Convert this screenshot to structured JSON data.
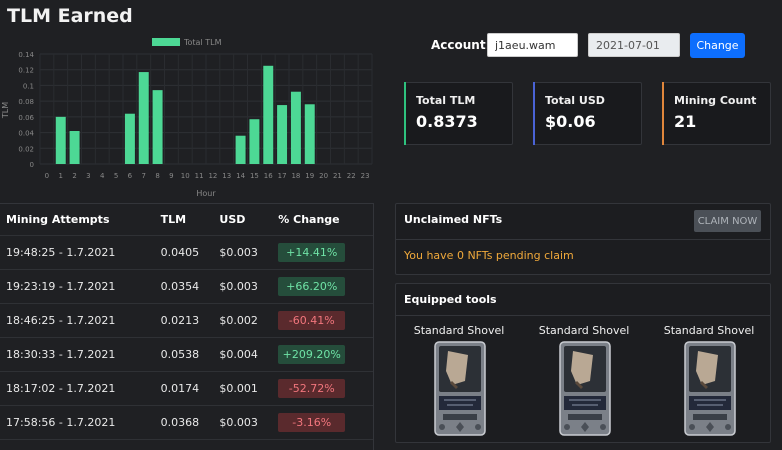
{
  "page": {
    "title": "TLM Earned"
  },
  "chart_data": {
    "type": "bar",
    "legend": "Total TLM",
    "xlabel": "Hour",
    "ylabel": "TLM",
    "ylim": [
      0,
      0.14
    ],
    "yticks": [
      "0",
      "0.02",
      "0.04",
      "0.06",
      "0.08",
      "0.1",
      "0.12",
      "0.14"
    ],
    "categories": [
      "0",
      "1",
      "2",
      "3",
      "4",
      "5",
      "6",
      "7",
      "8",
      "9",
      "10",
      "11",
      "12",
      "13",
      "14",
      "15",
      "16",
      "17",
      "18",
      "19",
      "20",
      "21",
      "22",
      "23"
    ],
    "values": [
      0,
      0.06,
      0.042,
      0,
      0,
      0,
      0.064,
      0.117,
      0.094,
      0,
      0,
      0,
      0,
      0,
      0.036,
      0.057,
      0.125,
      0.075,
      0.092,
      0.076,
      0,
      0,
      0,
      0
    ],
    "color": "#4dd895",
    "legend_position": "top-center",
    "grid": true
  },
  "account": {
    "label": "Account:",
    "value": "j1aeu.wam",
    "date": "2021-07-01",
    "change_label": "Change"
  },
  "stats": [
    {
      "label": "Total TLM",
      "value": "0.8373"
    },
    {
      "label": "Total USD",
      "value": "$0.06"
    },
    {
      "label": "Mining Count",
      "value": "21"
    }
  ],
  "mining": {
    "headers": [
      "Mining Attempts",
      "TLM",
      "USD",
      "% Change"
    ],
    "rows": [
      {
        "time": "19:48:25 - 1.7.2021",
        "tlm": "0.0405",
        "usd": "$0.003",
        "change": "+14.41%",
        "dir": "up"
      },
      {
        "time": "19:23:19 - 1.7.2021",
        "tlm": "0.0354",
        "usd": "$0.003",
        "change": "+66.20%",
        "dir": "up"
      },
      {
        "time": "18:46:25 - 1.7.2021",
        "tlm": "0.0213",
        "usd": "$0.002",
        "change": "-60.41%",
        "dir": "down"
      },
      {
        "time": "18:30:33 - 1.7.2021",
        "tlm": "0.0538",
        "usd": "$0.004",
        "change": "+209.20%",
        "dir": "up"
      },
      {
        "time": "18:17:02 - 1.7.2021",
        "tlm": "0.0174",
        "usd": "$0.001",
        "change": "-52.72%",
        "dir": "down"
      },
      {
        "time": "17:58:56 - 1.7.2021",
        "tlm": "0.0368",
        "usd": "$0.003",
        "change": "-3.16%",
        "dir": "down"
      }
    ]
  },
  "nfts": {
    "title": "Unclaimed NFTs",
    "claim_label": "CLAIM NOW",
    "message": "You have 0 NFTs pending claim"
  },
  "tools": {
    "title": "Equipped tools",
    "items": [
      {
        "name": "Standard Shovel",
        "icon": "shovel-card-icon"
      },
      {
        "name": "Standard Shovel",
        "icon": "shovel-card-icon"
      },
      {
        "name": "Standard Shovel",
        "icon": "shovel-card-icon"
      }
    ]
  },
  "colors": {
    "accent": "#0d6efd",
    "positive": "#6fe3a6",
    "negative": "#f2767d",
    "warning": "#f0a93b",
    "bar": "#4dd895"
  }
}
